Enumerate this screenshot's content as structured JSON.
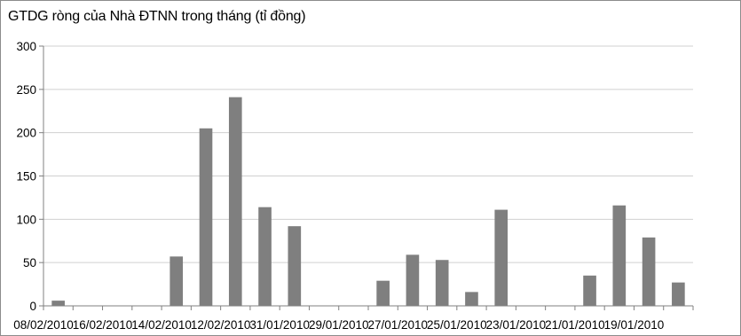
{
  "chart_data": {
    "type": "bar",
    "title": "GTDG ròng của Nhà ĐTNN trong tháng (tỉ đồng)",
    "xlabel": "",
    "ylabel": "",
    "ylim": [
      0,
      300
    ],
    "yticks": [
      "0",
      "50",
      "100",
      "150",
      "200",
      "250",
      "300"
    ],
    "grid": true,
    "legend": "none",
    "bar_color": "#7f7f7f",
    "categories": [
      "08/02/2010",
      "",
      "16/02/2010",
      "",
      "14/02/2010",
      "",
      "12/02/2010",
      "",
      "31/01/2010",
      "",
      "29/01/2010",
      "",
      "27/01/2010",
      "",
      "25/01/2010",
      "",
      "23/01/2010",
      "",
      "21/01/2010",
      "",
      "19/01/2010",
      ""
    ],
    "x_tick_labels": [
      "08/02/2010",
      "16/02/2010",
      "14/02/2010",
      "12/02/2010",
      "31/01/2010",
      "29/01/2010",
      "27/01/2010",
      "25/01/2010",
      "23/01/2010",
      "21/01/2010",
      "19/01/2010"
    ],
    "values": [
      6,
      0,
      0,
      0,
      57,
      205,
      241,
      114,
      92,
      0,
      0,
      29,
      59,
      53,
      16,
      111,
      0,
      0,
      35,
      116,
      79,
      27
    ]
  }
}
